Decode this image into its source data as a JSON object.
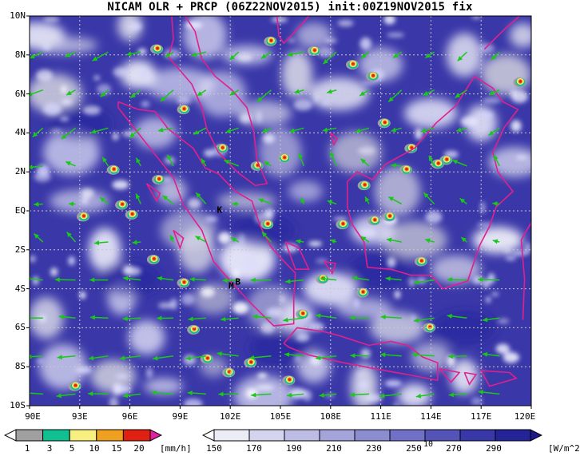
{
  "title": "NICAM OLR + PRCP (06Z22NOV2015) init:00Z19NOV2015 fix",
  "map": {
    "lat_ticks": [
      "10N",
      "8N",
      "6N",
      "4N",
      "2N",
      "EQ",
      "2S",
      "4S",
      "6S",
      "8S",
      "10S"
    ],
    "lon_ticks": [
      "90E",
      "93E",
      "96E",
      "99E",
      "102E",
      "105E",
      "108E",
      "111E",
      "114E",
      "117E",
      "120E"
    ],
    "lon_range": [
      90,
      120
    ],
    "lat_range": [
      -10,
      10
    ],
    "gridlines": true,
    "markers": [
      {
        "label": "K",
        "lon": 101.2,
        "lat": -0.1
      },
      {
        "label": "M",
        "lon": 101.9,
        "lat": -4.0
      },
      {
        "label": "B",
        "lon": 102.3,
        "lat": -3.8
      }
    ],
    "vector_reference_label": "10",
    "colors": {
      "olr_low": "#ffffff",
      "olr_high": "#1c1a8c",
      "coastline": "#e0208c",
      "wind": "#19c819"
    }
  },
  "prcp_colorbar": {
    "ticks": [
      "1",
      "3",
      "5",
      "10",
      "15",
      "20"
    ],
    "unit": "[mm/h]",
    "colors": [
      "#ffffff",
      "#a0a0a0",
      "#10c090",
      "#f7f080",
      "#f0a020",
      "#e02010",
      "#e020a0"
    ]
  },
  "olr_colorbar": {
    "ticks": [
      "150",
      "170",
      "190",
      "210",
      "230",
      "250",
      "270",
      "290"
    ],
    "unit": "[W/m^2]",
    "colors": [
      "#ffffff",
      "#ececf6",
      "#d4d4ee",
      "#bcbce4",
      "#a4a4da",
      "#8c8cd0",
      "#7070c6",
      "#5454b8",
      "#3838a8",
      "#242498",
      "#1c1a8c"
    ]
  }
}
